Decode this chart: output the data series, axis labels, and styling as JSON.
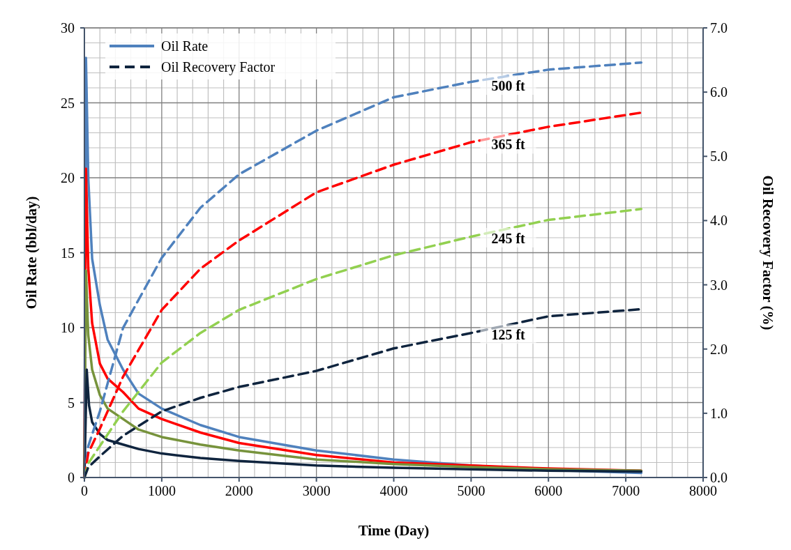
{
  "chart_data": {
    "type": "line",
    "xlabel": "Time (Day)",
    "ylabel": "Oil Rate (bbl/day)",
    "y2label": "Oil Recovery Factor (%)",
    "xlim": [
      0,
      8000
    ],
    "xticks": [
      0,
      1000,
      2000,
      3000,
      4000,
      5000,
      6000,
      7000,
      8000
    ],
    "ylim": [
      0,
      30
    ],
    "yticks": [
      0,
      5,
      10,
      15,
      20,
      25,
      30
    ],
    "y2lim": [
      0,
      7
    ],
    "y2ticks": [
      {
        "value": 0,
        "label": "0.0"
      },
      {
        "value": 1,
        "label": "1.0"
      },
      {
        "value": 2,
        "label": "2.0"
      },
      {
        "value": 3,
        "label": "3.0"
      },
      {
        "value": 4,
        "label": "4.0"
      },
      {
        "value": 5,
        "label": "5.0"
      },
      {
        "value": 6,
        "label": "6.0"
      },
      {
        "value": 7,
        "label": "7.0"
      }
    ],
    "grid": true,
    "legend": "top left",
    "series": [
      {
        "name": "Oil Rate",
        "color": "#4f81bd",
        "line_style": "solid",
        "x": [
          0,
          20,
          50,
          100,
          200,
          300,
          500,
          700,
          1000,
          1500,
          2000,
          3000,
          4000,
          5000,
          6000,
          7200
        ],
        "values": [
          0,
          28,
          20,
          14.6,
          11.5,
          9.2,
          7.2,
          5.6,
          4.6,
          3.5,
          2.7,
          1.8,
          1.2,
          0.8,
          0.5,
          0.3
        ]
      },
      {
        "color": "#ff0000",
        "line_style": "solid",
        "x": [
          0,
          20,
          50,
          100,
          200,
          300,
          500,
          700,
          1000,
          1500,
          2000,
          3000,
          4000,
          5000,
          6000,
          7200
        ],
        "values": [
          0,
          20.6,
          14,
          10.3,
          7.6,
          6.6,
          5.7,
          4.6,
          3.9,
          3,
          2.3,
          1.5,
          1,
          0.8,
          0.6,
          0.45
        ]
      },
      {
        "color": "#77933c",
        "line_style": "solid",
        "x": [
          0,
          20,
          50,
          100,
          200,
          300,
          500,
          700,
          1000,
          1500,
          2000,
          3000,
          4000,
          5000,
          6000,
          7200
        ],
        "values": [
          0,
          13.8,
          9.5,
          7.2,
          5.5,
          4.6,
          3.9,
          3.2,
          2.7,
          2.2,
          1.8,
          1.2,
          0.9,
          0.7,
          0.55,
          0.45
        ]
      },
      {
        "color": "#0f243e",
        "line_style": "solid",
        "x": [
          0,
          30,
          60,
          100,
          200,
          300,
          500,
          700,
          1000,
          1500,
          2000,
          3000,
          4000,
          5000,
          6000,
          7200
        ],
        "values": [
          0,
          7.2,
          4.8,
          3.7,
          2.9,
          2.5,
          2.2,
          1.9,
          1.6,
          1.3,
          1.1,
          0.8,
          0.65,
          0.55,
          0.45,
          0.4
        ]
      },
      {
        "color": "#4f81bd",
        "line_style": "dashed",
        "axis": "y2",
        "x": [
          0,
          50,
          200,
          500,
          1000,
          1500,
          2000,
          3000,
          4000,
          5000,
          6000,
          7200
        ],
        "values": [
          0,
          0.49,
          1.03,
          2.33,
          3.42,
          4.2,
          4.72,
          5.4,
          5.92,
          6.16,
          6.35,
          6.46
        ]
      },
      {
        "color": "#ff0000",
        "line_style": "dashed",
        "axis": "y2",
        "x": [
          0,
          50,
          200,
          500,
          1000,
          1500,
          2000,
          3000,
          4000,
          5000,
          6000,
          7200
        ],
        "values": [
          0,
          0.38,
          0.76,
          1.57,
          2.61,
          3.25,
          3.69,
          4.44,
          4.87,
          5.22,
          5.46,
          5.68
        ]
      },
      {
        "color": "#92d050",
        "line_style": "dashed",
        "axis": "y2",
        "x": [
          0,
          50,
          200,
          500,
          1000,
          1500,
          2000,
          3000,
          4000,
          5000,
          6000,
          7200
        ],
        "values": [
          0,
          0.22,
          0.49,
          1.03,
          1.79,
          2.25,
          2.61,
          3.09,
          3.46,
          3.75,
          4.01,
          4.18
        ]
      },
      {
        "name": "Oil Recovery Factor",
        "color": "#0f243e",
        "line_style": "dashed",
        "axis": "y2",
        "x": [
          0,
          50,
          200,
          500,
          1000,
          1500,
          2000,
          3000,
          4000,
          5000,
          6000,
          7200
        ],
        "values": [
          0,
          0.16,
          0.33,
          0.65,
          1.03,
          1.24,
          1.41,
          1.66,
          2.01,
          2.25,
          2.51,
          2.62
        ]
      }
    ],
    "annotations": [
      "500 ft",
      "365 ft",
      "245 ft",
      "125 ft"
    ]
  }
}
